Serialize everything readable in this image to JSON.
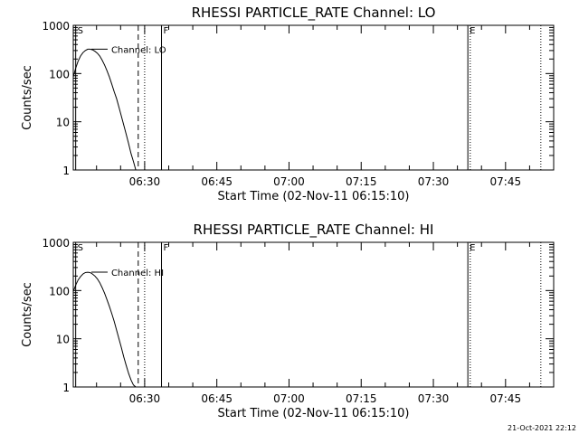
{
  "chart_data": [
    {
      "type": "line",
      "title": "RHESSI PARTICLE_RATE Channel: LO",
      "xlabel": "Start Time (02-Nov-11 06:15:10)",
      "ylabel": "Counts/sec",
      "y_scale": "log",
      "ylim": [
        1,
        1000
      ],
      "y_ticks": [
        {
          "value": 1,
          "label": "1"
        },
        {
          "value": 10,
          "label": "10"
        },
        {
          "value": 100,
          "label": "100"
        },
        {
          "value": 1000,
          "label": "1000"
        }
      ],
      "xlim": [
        "06:15:10",
        "07:55:00"
      ],
      "x_ticks": [
        "06:30",
        "06:45",
        "07:00",
        "07:15",
        "07:30",
        "07:45"
      ],
      "series": [
        {
          "name": "Channel: LO",
          "x": [
            "06:15:10",
            "06:15:40",
            "06:16:10",
            "06:16:40",
            "06:17:10",
            "06:17:40",
            "06:18:10",
            "06:18:40",
            "06:19:10",
            "06:19:40",
            "06:20:10",
            "06:20:40",
            "06:21:10",
            "06:21:40",
            "06:22:10",
            "06:22:40",
            "06:23:10",
            "06:23:40",
            "06:24:10",
            "06:24:40",
            "06:25:10",
            "06:25:40",
            "06:26:10",
            "06:26:40",
            "06:27:10",
            "06:27:40",
            "06:28:10"
          ],
          "values": [
            85,
            130,
            180,
            230,
            270,
            300,
            320,
            320,
            310,
            290,
            265,
            230,
            190,
            150,
            115,
            85,
            60,
            42,
            30,
            20,
            13,
            8.5,
            5.5,
            3.5,
            2.2,
            1.5,
            1.0
          ]
        }
      ],
      "markers": [
        {
          "time": "06:15:40",
          "label": "S",
          "style": "solid"
        },
        {
          "time": "06:28:40",
          "label": "",
          "style": "dashed"
        },
        {
          "time": "06:30:00",
          "label": "",
          "style": "dotted"
        },
        {
          "time": "06:33:30",
          "label": "F",
          "style": "solid"
        },
        {
          "time": "07:37:10",
          "label": "E",
          "style": "solid"
        },
        {
          "time": "07:37:40",
          "label": "",
          "style": "dotted"
        },
        {
          "time": "07:52:20",
          "label": "",
          "style": "dotted"
        }
      ]
    },
    {
      "type": "line",
      "title": "RHESSI PARTICLE_RATE Channel: HI",
      "xlabel": "Start Time (02-Nov-11 06:15:10)",
      "ylabel": "Counts/sec",
      "y_scale": "log",
      "ylim": [
        1,
        1000
      ],
      "y_ticks": [
        {
          "value": 1,
          "label": "1"
        },
        {
          "value": 10,
          "label": "10"
        },
        {
          "value": 100,
          "label": "100"
        },
        {
          "value": 1000,
          "label": "1000"
        }
      ],
      "xlim": [
        "06:15:10",
        "07:55:00"
      ],
      "x_ticks": [
        "06:30",
        "06:45",
        "07:00",
        "07:15",
        "07:30",
        "07:45"
      ],
      "series": [
        {
          "name": "Channel: HI",
          "x": [
            "06:15:10",
            "06:15:40",
            "06:16:10",
            "06:16:40",
            "06:17:10",
            "06:17:40",
            "06:18:10",
            "06:18:40",
            "06:19:10",
            "06:19:40",
            "06:20:10",
            "06:20:40",
            "06:21:10",
            "06:21:40",
            "06:22:10",
            "06:22:40",
            "06:23:10",
            "06:23:40",
            "06:24:10",
            "06:24:40",
            "06:25:10",
            "06:25:40",
            "06:26:10",
            "06:26:40",
            "06:27:10",
            "06:27:40",
            "06:28:10"
          ],
          "values": [
            95,
            130,
            165,
            195,
            220,
            235,
            240,
            235,
            220,
            200,
            175,
            145,
            115,
            88,
            65,
            47,
            33,
            23,
            15,
            10,
            6.5,
            4.2,
            2.8,
            1.9,
            1.4,
            1.1,
            1.0
          ]
        }
      ],
      "markers": [
        {
          "time": "06:15:40",
          "label": "S",
          "style": "solid"
        },
        {
          "time": "06:28:40",
          "label": "",
          "style": "dashed"
        },
        {
          "time": "06:30:00",
          "label": "",
          "style": "dotted"
        },
        {
          "time": "06:33:30",
          "label": "F",
          "style": "solid"
        },
        {
          "time": "07:37:10",
          "label": "E",
          "style": "solid"
        },
        {
          "time": "07:37:40",
          "label": "",
          "style": "dotted"
        },
        {
          "time": "07:52:20",
          "label": "",
          "style": "dotted"
        }
      ]
    }
  ],
  "footer": {
    "timestamp": "21-Oct-2021 22:12"
  }
}
